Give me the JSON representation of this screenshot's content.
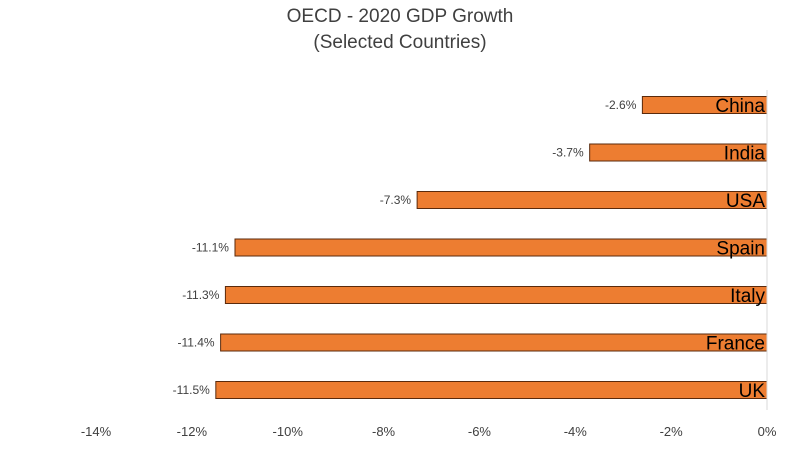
{
  "chart_data": {
    "type": "bar",
    "orientation": "horizontal",
    "title": "OECD - 2020 GDP Growth",
    "subtitle": "(Selected Countries)",
    "categories": [
      "China",
      "India",
      "USA",
      "Spain",
      "Italy",
      "France",
      "UK"
    ],
    "values": [
      -2.6,
      -3.7,
      -7.3,
      -11.1,
      -11.3,
      -11.4,
      -11.5
    ],
    "data_labels": [
      "-2.6%",
      "-3.7%",
      "-7.3%",
      "-11.1%",
      "-11.3%",
      "-11.4%",
      "-11.5%"
    ],
    "xlim": [
      -14,
      0
    ],
    "xticks": [
      -14,
      -12,
      -10,
      -8,
      -6,
      -4,
      -2,
      0
    ],
    "xtick_labels": [
      "-14%",
      "-12%",
      "-10%",
      "-8%",
      "-6%",
      "-4%",
      "-2%",
      "0%"
    ],
    "xlabel": "",
    "ylabel": "",
    "grid": false,
    "legend": "none",
    "colors": {
      "bar_fill": "#ED7D31",
      "bar_stroke": "#5A2A0C",
      "axis": "#D9D9D9",
      "text": "#404040"
    }
  }
}
